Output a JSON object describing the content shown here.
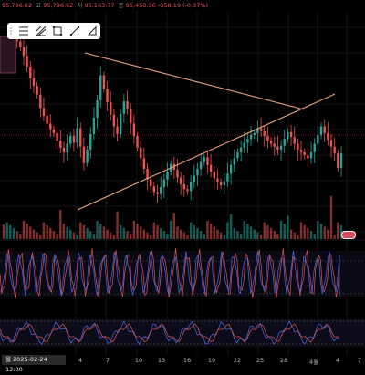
{
  "ohlc_line": {
    "open": "95,796.62",
    "high_label": "고",
    "high": "95,796.62",
    "low_label": "저",
    "low": "95,163.77",
    "close_label": "종",
    "close": "95,450.36",
    "change": "-358.19 (-0.37%)"
  },
  "toolbar": {
    "icons": [
      "grip-icon",
      "horizontal-lines-icon",
      "fib-tool-icon",
      "rectangle-tool-icon",
      "trendline-tool-icon",
      "gann-tool-icon"
    ]
  },
  "time_axis": {
    "cursor_label": "월 2025-02-24  12:00",
    "ticks": [
      "4",
      "7",
      "10",
      "13",
      "16",
      "19",
      "22",
      "25",
      "28",
      "4월",
      "4",
      "7"
    ]
  },
  "colors": {
    "up": "#26a69a",
    "down": "#ef5350",
    "trendline": "#f0a080",
    "price_line": "#ef5350",
    "oscillator_a": "#ef5350",
    "oscillator_b": "#4a6cf7",
    "stoch_k": "#4a6cf7",
    "stoch_d": "#ef5350"
  },
  "chart_data": {
    "type": "candlestick",
    "price_close": [
      95450,
      96000,
      97100,
      98200,
      97400,
      96800,
      95900,
      94800,
      93600,
      92800,
      91900,
      90500,
      89700,
      88900,
      88300,
      87900,
      87100,
      86400,
      85900,
      86800,
      87600,
      86900,
      88400,
      86500,
      84800,
      86200,
      87800,
      89500,
      91300,
      93900,
      92500,
      91100,
      89800,
      88600,
      87800,
      89900,
      91200,
      90400,
      88900,
      87600,
      86400,
      85300,
      84200,
      83100,
      82400,
      81800,
      81600,
      82300,
      83100,
      83900,
      84700,
      84100,
      83300,
      82600,
      82100,
      81900,
      82800,
      83500,
      84200,
      84900,
      85400,
      84600,
      83900,
      83200,
      82800,
      82500,
      82900,
      83700,
      84600,
      85300,
      85900,
      86400,
      86900,
      87300,
      87700,
      87900,
      88400,
      88100,
      87600,
      87100,
      86800,
      86500,
      86200,
      86600,
      87300,
      88000,
      87500,
      86800,
      86200,
      85900,
      85600,
      85300,
      85900,
      86800,
      87700,
      88600,
      87900,
      87200,
      86500,
      85800,
      84300,
      85800
    ]
  }
}
